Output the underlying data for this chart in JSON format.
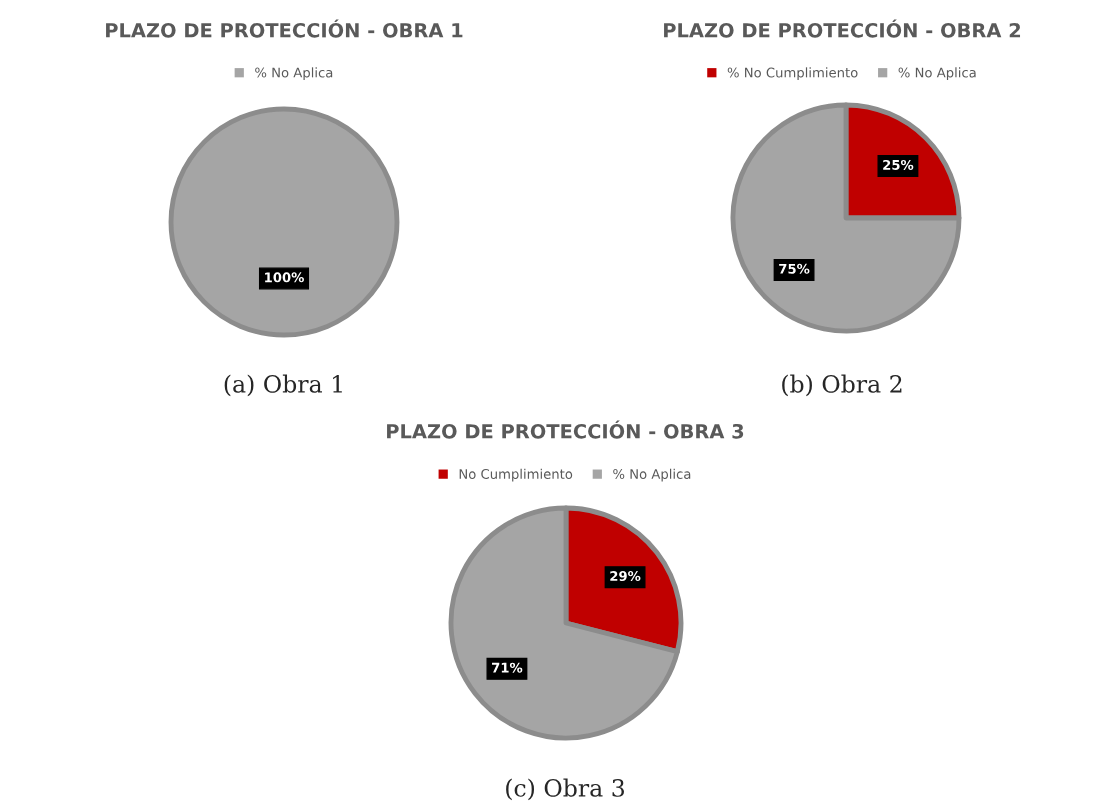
{
  "chart_data": [
    {
      "type": "pie",
      "title": "PLAZO DE PROTECCIÓN - OBRA 1",
      "categories": [
        "% No Aplica"
      ],
      "values": [
        100
      ],
      "colors": [
        "#a5a5a5"
      ],
      "value_labels": [
        "100%"
      ],
      "legend": "top",
      "annotations": [
        "(a) Obra 1"
      ]
    },
    {
      "type": "pie",
      "title": "PLAZO DE PROTECCIÓN - OBRA 2",
      "categories": [
        "% No Cumplimiento",
        "% No Aplica"
      ],
      "values": [
        25,
        75
      ],
      "colors": [
        "#c00000",
        "#a5a5a5"
      ],
      "value_labels": [
        "25%",
        "75%"
      ],
      "legend": "top",
      "annotations": [
        "(b) Obra 2"
      ]
    },
    {
      "type": "pie",
      "title": "PLAZO DE PROTECCIÓN - OBRA 3",
      "categories": [
        "No Cumplimiento",
        "% No Aplica"
      ],
      "values": [
        29,
        71
      ],
      "colors": [
        "#c00000",
        "#a5a5a5"
      ],
      "value_labels": [
        "29%",
        "71%"
      ],
      "legend": "top",
      "annotations": [
        "(c) Obra 3"
      ]
    }
  ]
}
